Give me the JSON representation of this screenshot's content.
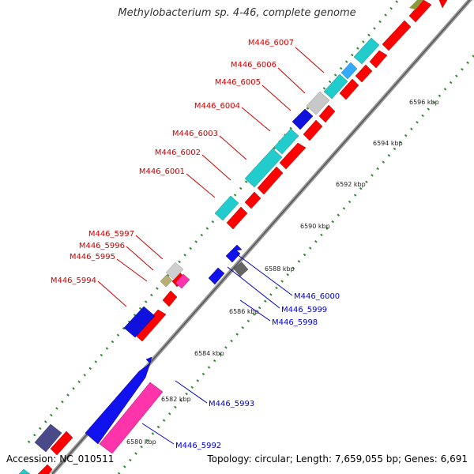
{
  "title": "Methylobacterium sp. 4-46, complete genome",
  "footer": {
    "accession": "Accession: NC_010511",
    "summary": "Topology: circular; Length: 7,659,055 bp; Genes: 6,691"
  },
  "colors": {
    "backbone": "#8a8a8a",
    "tick": "#2e8b2e",
    "forward_cds": "#ff0000",
    "reverse_cds": "#0000ff",
    "trna": "#00cccc",
    "label_forward": "#cc0000",
    "label_reverse": "#0000cc"
  },
  "scale_labels": [
    "6596 kbp",
    "6594 kbp",
    "6592 kbp",
    "6590 kbp",
    "6588 kbp",
    "6586 kbp",
    "6584 kbp",
    "6582 kbp",
    "6580 kbp"
  ],
  "left_gene_labels": [
    "M446_6007",
    "M446_6006",
    "M446_6005",
    "M446_6004",
    "M446_6003",
    "M446_6002",
    "M446_6001",
    "M446_5997",
    "M446_5996",
    "M446_5995",
    "M446_5994"
  ],
  "right_gene_labels": [
    "M446_6000",
    "M446_5999",
    "M446_5998",
    "M446_5993",
    "M446_5992"
  ]
}
